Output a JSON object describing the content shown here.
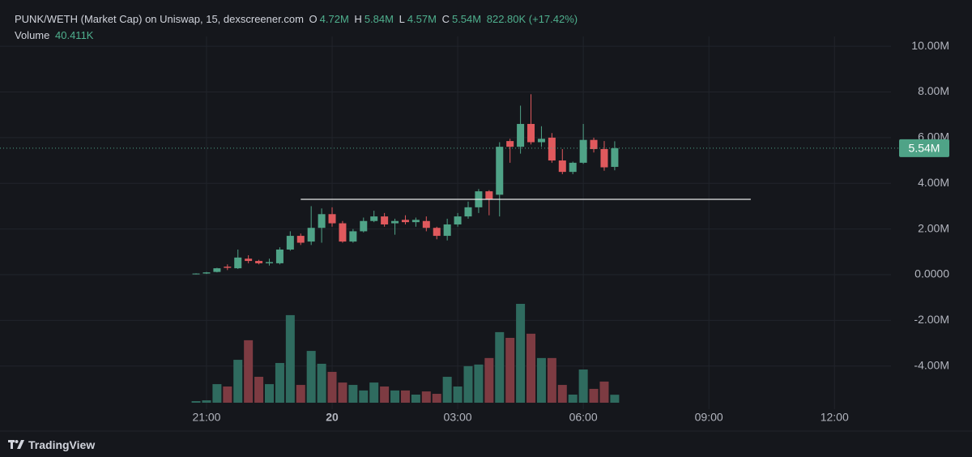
{
  "chart_data": {
    "type": "candlestick",
    "legend": {
      "title": "PUNK/WETH (Market Cap) on Uniswap, 15, dexscreener.com",
      "open": {
        "key": "O",
        "label": "4.72M"
      },
      "high": {
        "key": "H",
        "label": "5.84M"
      },
      "low": {
        "key": "L",
        "label": "4.57M"
      },
      "close": {
        "key": "C",
        "label": "5.54M"
      },
      "change": "822.80K (+17.42%)",
      "volume": {
        "key": "Volume",
        "label": "40.411K"
      }
    },
    "x": [
      "20:45",
      "21:00",
      "21:15",
      "21:30",
      "21:45",
      "22:00",
      "22:15",
      "22:30",
      "22:45",
      "23:00",
      "23:15",
      "23:30",
      "23:45",
      "00:00",
      "00:15",
      "00:30",
      "00:45",
      "01:00",
      "01:15",
      "01:30",
      "01:45",
      "02:00",
      "02:15",
      "02:30",
      "02:45",
      "03:00",
      "03:15",
      "03:30",
      "03:45",
      "04:00",
      "04:15",
      "04:30",
      "04:45",
      "05:00",
      "05:15",
      "05:30",
      "05:45",
      "06:00",
      "06:15",
      "06:30",
      "06:45"
    ],
    "open": [
      20000,
      50000,
      120000,
      350000,
      280000,
      700000,
      600000,
      500000,
      500000,
      1100000,
      1700000,
      1450000,
      2050000,
      2650000,
      2250000,
      1450000,
      1900000,
      2350000,
      2550000,
      2250000,
      2400000,
      2300000,
      2350000,
      2050000,
      1700000,
      2200000,
      2550000,
      2950000,
      3650000,
      3500000,
      5850000,
      5600000,
      6600000,
      5800000,
      6000000,
      5000000,
      4500000,
      4900000,
      5900000,
      5500000,
      4720000
    ],
    "high": [
      60000,
      120000,
      300000,
      450000,
      1100000,
      850000,
      650000,
      700000,
      1200000,
      1900000,
      1800000,
      3000000,
      2900000,
      2950000,
      2350000,
      2000000,
      2500000,
      2800000,
      2700000,
      2450000,
      2600000,
      2500000,
      2550000,
      2100000,
      2450000,
      2700000,
      3200000,
      3750000,
      3700000,
      5800000,
      5950000,
      7400000,
      7900000,
      6500000,
      6200000,
      5500000,
      4950000,
      6600000,
      6000000,
      5850000,
      5840000
    ],
    "low": [
      10000,
      30000,
      100000,
      200000,
      250000,
      500000,
      450000,
      400000,
      450000,
      1050000,
      1300000,
      1300000,
      1400000,
      2100000,
      1400000,
      1400000,
      1850000,
      2300000,
      2100000,
      1750000,
      2200000,
      2100000,
      1900000,
      1550000,
      1500000,
      2100000,
      2450000,
      2700000,
      2600000,
      2550000,
      4900000,
      5300000,
      5700000,
      5600000,
      4900000,
      4400000,
      4400000,
      4850000,
      5350000,
      4550000,
      4570000
    ],
    "close": [
      50000,
      100000,
      280000,
      300000,
      750000,
      600000,
      500000,
      550000,
      1100000,
      1700000,
      1400000,
      2050000,
      2650000,
      2250000,
      1450000,
      1900000,
      2350000,
      2550000,
      2200000,
      2350000,
      2300000,
      2400000,
      2050000,
      1700000,
      2200000,
      2550000,
      2950000,
      3650000,
      3300000,
      5600000,
      5600000,
      6600000,
      5800000,
      5950000,
      5000000,
      4500000,
      4900000,
      5900000,
      5500000,
      4700000,
      5540000
    ],
    "volume": [
      8000,
      12000,
      94000,
      82000,
      217000,
      316000,
      131000,
      94000,
      201000,
      443000,
      90000,
      262000,
      197000,
      156000,
      102000,
      90000,
      62000,
      102000,
      82000,
      62000,
      62000,
      41000,
      57000,
      45000,
      131000,
      82000,
      185000,
      193000,
      226000,
      357000,
      328000,
      500000,
      349000,
      226000,
      226000,
      90000,
      41000,
      168000,
      70000,
      107000,
      40411
    ],
    "up_color": "#4fa387",
    "down_color": "#e0595d",
    "volume_up_color": "#2f6b5f",
    "volume_down_color": "#7d3b42",
    "xlim": [
      "16:04",
      "13:21"
    ],
    "xticks": [
      "21:00",
      {
        "value": "00:00",
        "label": "20"
      },
      "03:00",
      "06:00",
      "09:00",
      "12:00"
    ],
    "ylim": [
      -5890000,
      10430000
    ],
    "yticks": [
      {
        "value": 10000000,
        "label": "10.00M"
      },
      {
        "value": 8000000,
        "label": "8.00M"
      },
      {
        "value": 6000000,
        "label": "6.00M"
      },
      {
        "value": 4000000,
        "label": "4.00M"
      },
      {
        "value": 2000000,
        "label": "2.00M"
      },
      {
        "value": 0,
        "label": "0.0000"
      },
      {
        "value": -2000000,
        "label": "-2.00M"
      },
      {
        "value": -4000000,
        "label": "-4.00M"
      }
    ],
    "volume_ylim": [
      0,
      500000
    ],
    "grid": true,
    "last_price": {
      "value": 5540000,
      "label": "5.54M"
    },
    "level": {
      "value": 3300000,
      "from": "23:15",
      "to": "10:00"
    }
  },
  "brand": "TradingView"
}
